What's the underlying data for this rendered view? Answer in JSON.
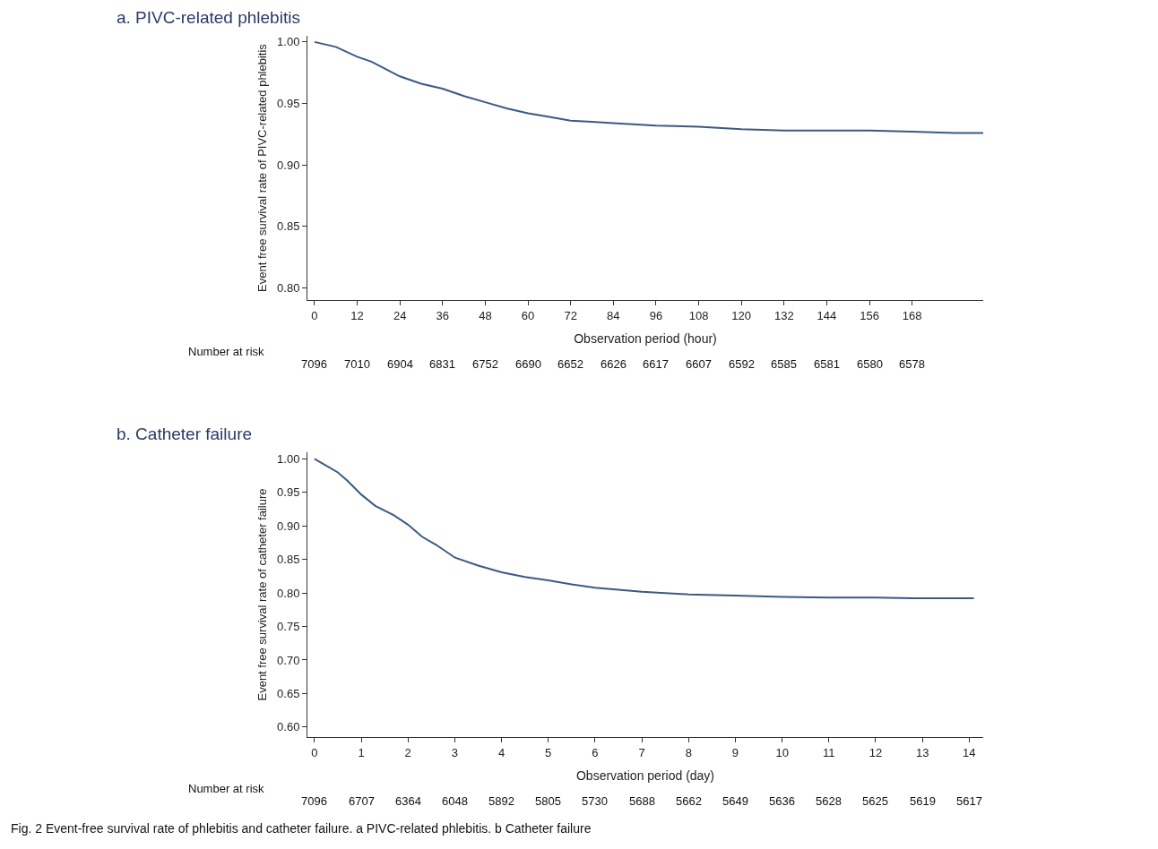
{
  "chart_data": [
    {
      "type": "line",
      "title": "a. PIVC-related phlebitis",
      "xlabel": "Observation period (hour)",
      "ylabel": "Event free survival rate of PIVC-related phlebitis",
      "xlim": [
        -2,
        188
      ],
      "xticks": [
        0,
        12,
        24,
        36,
        48,
        60,
        72,
        84,
        96,
        108,
        120,
        132,
        144,
        156,
        168
      ],
      "ylim": [
        0.79,
        1.005
      ],
      "yticks": [
        {
          "value": 0.8,
          "label": "0.80"
        },
        {
          "value": 0.85,
          "label": "0.85"
        },
        {
          "value": 0.9,
          "label": "0.90"
        },
        {
          "value": 0.95,
          "label": "0.95"
        },
        {
          "value": 1.0,
          "label": "1.00"
        }
      ],
      "series": [
        {
          "color": "#3b5a82",
          "x": [
            0,
            6,
            12,
            16,
            20,
            24,
            30,
            36,
            42,
            48,
            54,
            60,
            66,
            72,
            78,
            84,
            96,
            108,
            120,
            132,
            144,
            156,
            168,
            180,
            188
          ],
          "values": [
            1.0,
            0.996,
            0.988,
            0.984,
            0.978,
            0.972,
            0.966,
            0.962,
            0.956,
            0.951,
            0.946,
            0.942,
            0.939,
            0.936,
            0.935,
            0.934,
            0.932,
            0.931,
            0.929,
            0.928,
            0.928,
            0.928,
            0.927,
            0.926,
            0.926
          ]
        }
      ],
      "annotations": [
        "Number at risk",
        "7096",
        "7010",
        "6904",
        "6831",
        "6752",
        "6690",
        "6652",
        "6626",
        "6617",
        "6607",
        "6592",
        "6585",
        "6581",
        "6580",
        "6578"
      ]
    },
    {
      "type": "line",
      "title": "b. Catheter failure",
      "xlabel": "Observation period (day)",
      "ylabel": "Event free survival rate of catheter failure",
      "xlim": [
        -0.15,
        14.3
      ],
      "xticks": [
        0,
        1,
        2,
        3,
        4,
        5,
        6,
        7,
        8,
        9,
        10,
        11,
        12,
        13,
        14
      ],
      "ylim": [
        0.585,
        1.01
      ],
      "yticks": [
        {
          "value": 0.6,
          "label": "0.60"
        },
        {
          "value": 0.65,
          "label": "0.65"
        },
        {
          "value": 0.7,
          "label": "0.70"
        },
        {
          "value": 0.75,
          "label": "0.75"
        },
        {
          "value": 0.8,
          "label": "0.80"
        },
        {
          "value": 0.85,
          "label": "0.85"
        },
        {
          "value": 0.9,
          "label": "0.90"
        },
        {
          "value": 0.95,
          "label": "0.95"
        },
        {
          "value": 1.0,
          "label": "1.00"
        }
      ],
      "series": [
        {
          "color": "#3b5a82",
          "x": [
            0,
            0.25,
            0.5,
            0.7,
            1,
            1.3,
            1.7,
            2,
            2.3,
            2.6,
            3,
            3.5,
            4,
            4.5,
            5,
            5.5,
            6,
            6.5,
            7,
            8,
            9,
            10,
            11,
            12,
            13,
            14.1
          ],
          "values": [
            1.0,
            0.99,
            0.98,
            0.968,
            0.947,
            0.93,
            0.916,
            0.902,
            0.884,
            0.872,
            0.853,
            0.841,
            0.831,
            0.824,
            0.819,
            0.813,
            0.808,
            0.805,
            0.802,
            0.798,
            0.796,
            0.794,
            0.793,
            0.793,
            0.792,
            0.792
          ]
        }
      ],
      "annotations": [
        "Number at risk",
        "7096",
        "6707",
        "6364",
        "6048",
        "5892",
        "5805",
        "5730",
        "5688",
        "5662",
        "5649",
        "5636",
        "5628",
        "5625",
        "5619",
        "5617",
        "Fig. 2 Event-free survival rate of phlebitis and catheter failure. a PIVC-related phlebitis. b Catheter failure"
      ]
    }
  ]
}
